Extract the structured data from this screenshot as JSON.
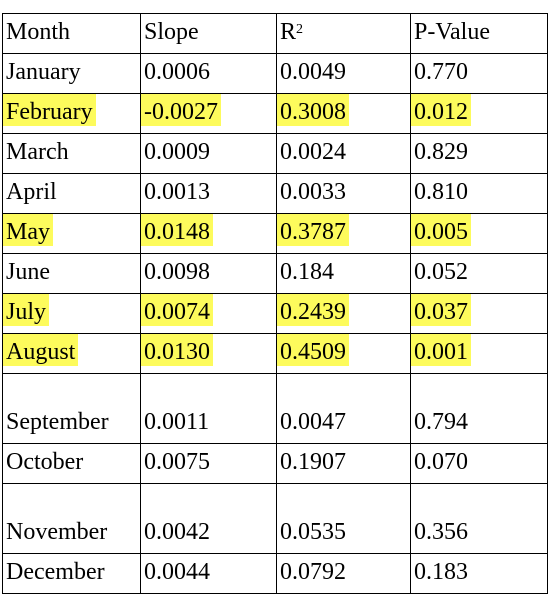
{
  "table": {
    "headers": {
      "month": "Month",
      "slope": "Slope",
      "r2_base": "R",
      "r2_sup": "2",
      "pvalue": "P-Value"
    },
    "highlight_color": "#fdfb5c",
    "rows": [
      {
        "month": "January",
        "slope": "0.0006",
        "r2": "0.0049",
        "pvalue": "0.770",
        "highlighted": false
      },
      {
        "month": "February",
        "slope": "-0.0027",
        "r2": "0.3008",
        "pvalue": "0.012",
        "highlighted": true
      },
      {
        "month": "March",
        "slope": "0.0009",
        "r2": "0.0024",
        "pvalue": "0.829",
        "highlighted": false
      },
      {
        "month": "April",
        "slope": "0.0013",
        "r2": "0.0033",
        "pvalue": "0.810",
        "highlighted": false
      },
      {
        "month": "May",
        "slope": "0.0148",
        "r2": "0.3787",
        "pvalue": "0.005",
        "highlighted": true
      },
      {
        "month": "June",
        "slope": "0.0098",
        "r2": "0.184",
        "pvalue": "0.052",
        "highlighted": false
      },
      {
        "month": "July",
        "slope": "0.0074",
        "r2": "0.2439",
        "pvalue": "0.037",
        "highlighted": true
      },
      {
        "month": "August",
        "slope": "0.0130",
        "r2": "0.4509",
        "pvalue": "0.001",
        "highlighted": true
      },
      {
        "month": "September",
        "slope": "0.0011",
        "r2": "0.0047",
        "pvalue": "0.794",
        "highlighted": false
      },
      {
        "month": "October",
        "slope": "0.0075",
        "r2": "0.1907",
        "pvalue": "0.070",
        "highlighted": false
      },
      {
        "month": "November",
        "slope": "0.0042",
        "r2": "0.0535",
        "pvalue": "0.356",
        "highlighted": false
      },
      {
        "month": "December",
        "slope": "0.0044",
        "r2": "0.0792",
        "pvalue": "0.183",
        "highlighted": false
      }
    ]
  }
}
